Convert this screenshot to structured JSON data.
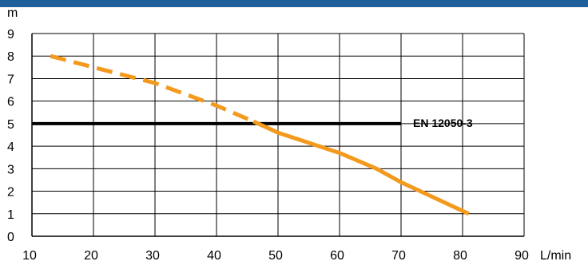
{
  "colors": {
    "top_band": "#1f5f9a",
    "grid": "#000000",
    "reference_line": "#000000",
    "curve": "#f39a1e"
  },
  "chart_data": {
    "type": "line",
    "xlabel": "L/min",
    "ylabel": "m",
    "xlim": [
      10,
      90
    ],
    "ylim": [
      0,
      9
    ],
    "x_ticks": [
      "10",
      "20",
      "30",
      "40",
      "50",
      "60",
      "70",
      "80",
      "90"
    ],
    "y_ticks": [
      "0",
      "1",
      "2",
      "3",
      "4",
      "5",
      "6",
      "7",
      "8",
      "9"
    ],
    "grid": true,
    "series": [
      {
        "style": "dashed",
        "x": [
          13,
          20,
          30,
          40,
          46
        ],
        "y": [
          8.0,
          7.5,
          6.8,
          5.8,
          5.1
        ]
      },
      {
        "style": "solid",
        "x": [
          46,
          50,
          60,
          66,
          70,
          81
        ],
        "y": [
          5.1,
          4.6,
          3.7,
          3.0,
          2.4,
          1.0
        ]
      }
    ],
    "reference_line": {
      "label": "EN 12050-3",
      "y": 5,
      "x_range": [
        10,
        70
      ]
    }
  }
}
